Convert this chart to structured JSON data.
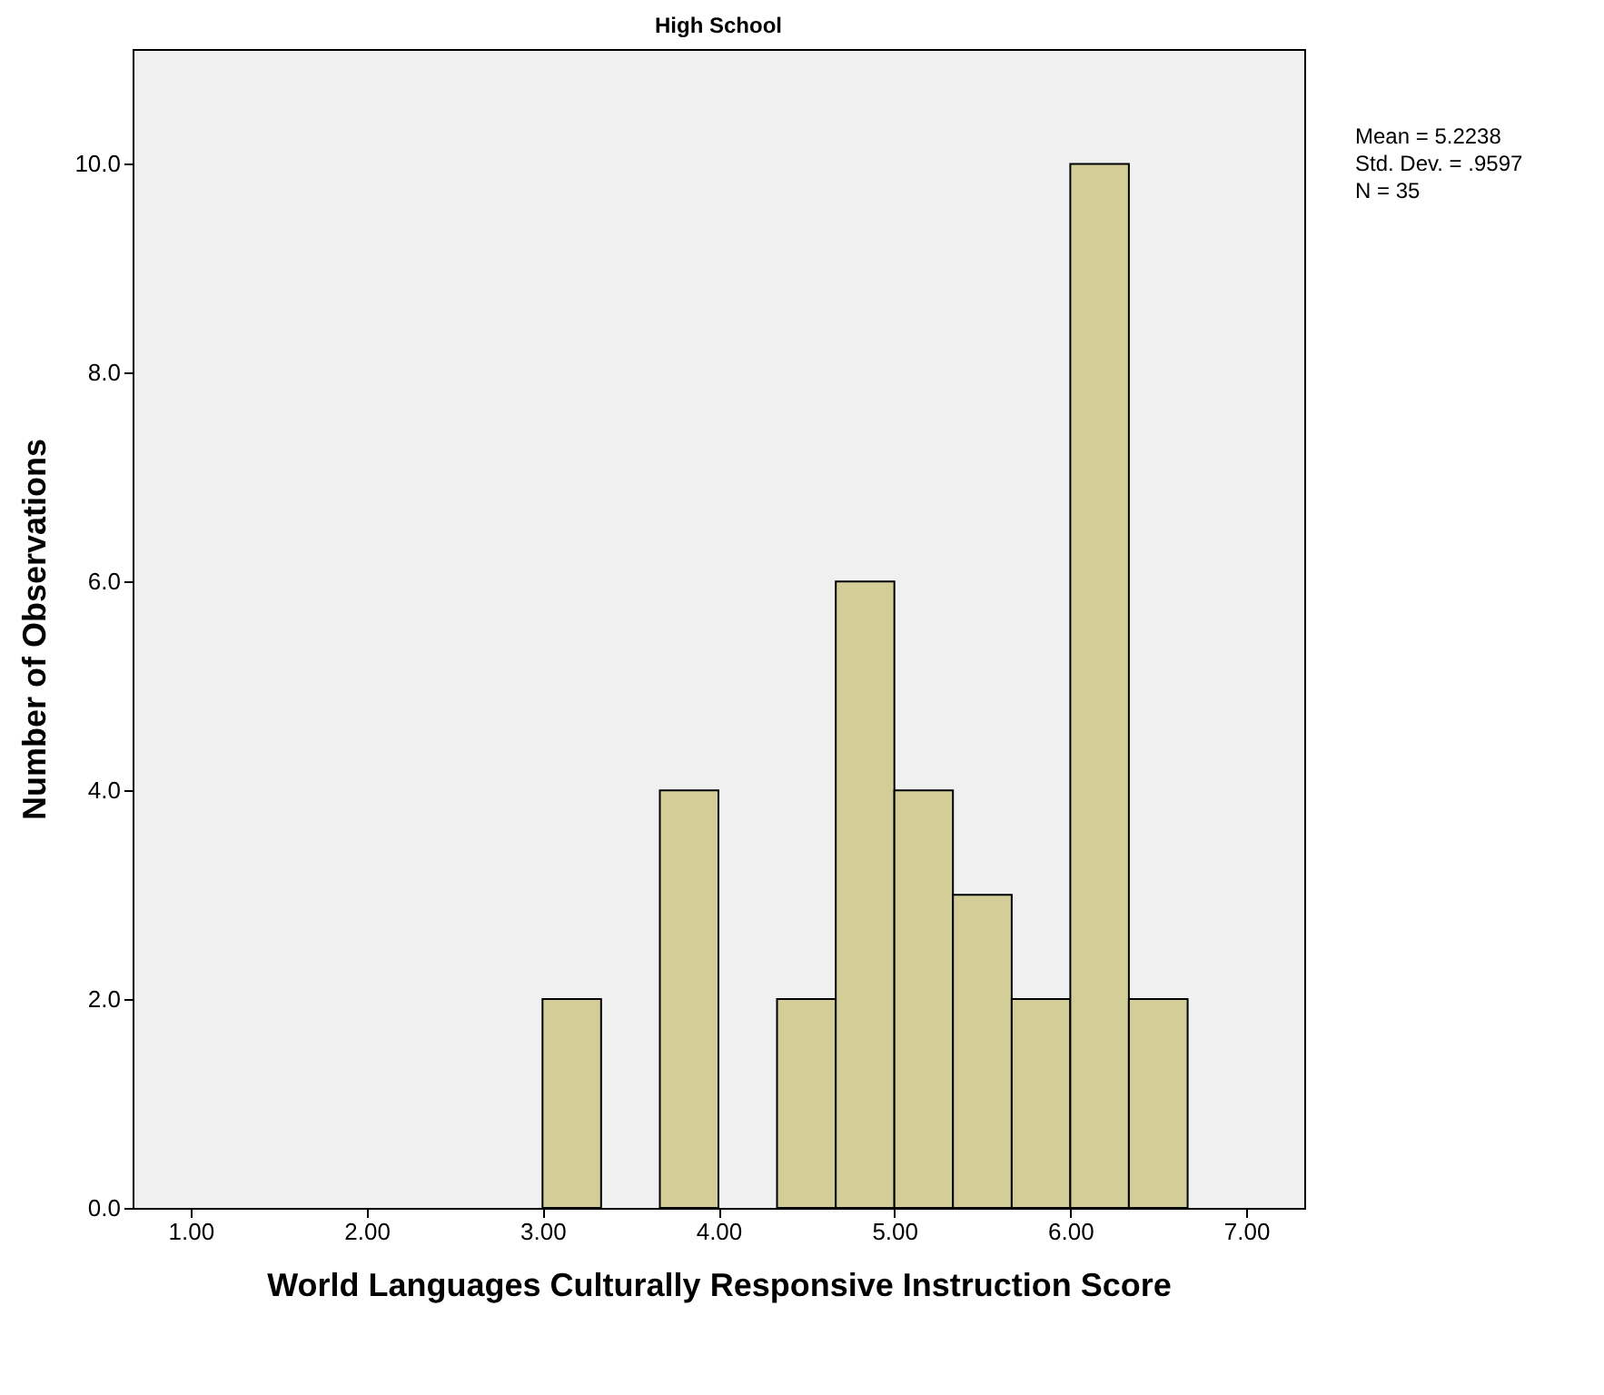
{
  "chart_data": {
    "type": "histogram",
    "title": "High School",
    "xlabel": "World Languages Culturally Responsive Instruction Score",
    "ylabel": "Number of Observations",
    "bins": [
      3.0,
      3.333,
      3.667,
      4.0,
      4.333,
      4.667,
      5.0,
      5.333,
      5.667,
      6.0,
      6.333,
      6.667
    ],
    "values": [
      2,
      0,
      4,
      0,
      2,
      6,
      4,
      3,
      2,
      10,
      2
    ],
    "color": "#d3ce97",
    "xlim": [
      0.67,
      7.33
    ],
    "xticks": [
      {
        "value": 1,
        "label": "1.00"
      },
      {
        "value": 2,
        "label": "2.00"
      },
      {
        "value": 3,
        "label": "3.00"
      },
      {
        "value": 4,
        "label": "4.00"
      },
      {
        "value": 5,
        "label": "5.00"
      },
      {
        "value": 6,
        "label": "6.00"
      },
      {
        "value": 7,
        "label": "7.00"
      }
    ],
    "ylim": [
      0,
      11.1
    ],
    "yticks": [
      {
        "value": 0,
        "label": "0.0"
      },
      {
        "value": 2,
        "label": "2.0"
      },
      {
        "value": 4,
        "label": "4.0"
      },
      {
        "value": 6,
        "label": "6.0"
      },
      {
        "value": 8,
        "label": "8.0"
      },
      {
        "value": 10,
        "label": "10.0"
      }
    ],
    "annotations": [
      "Mean = 5.2238",
      "Std. Dev. = .9597",
      "N = 35"
    ],
    "grid": false
  }
}
